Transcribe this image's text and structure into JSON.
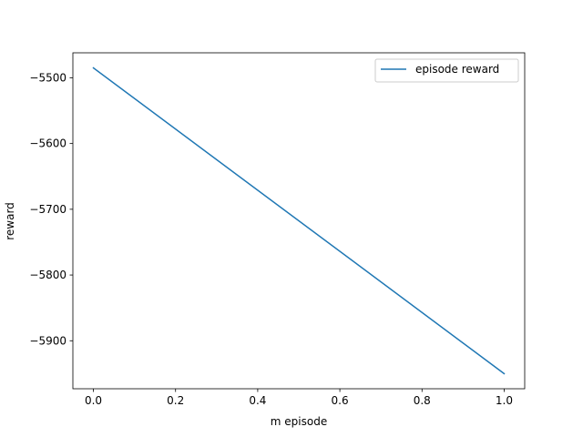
{
  "chart_data": {
    "type": "line",
    "title": "",
    "xlabel": "m episode",
    "ylabel": "reward",
    "xlim": [
      -0.05,
      1.05
    ],
    "ylim": [
      -5973,
      -5462
    ],
    "x_ticks": [
      0.0,
      0.2,
      0.4,
      0.6,
      0.8,
      1.0
    ],
    "x_tick_labels": [
      "0.0",
      "0.2",
      "0.4",
      "0.6",
      "0.8",
      "1.0"
    ],
    "y_ticks": [
      -5900,
      -5800,
      -5700,
      -5600,
      -5500
    ],
    "y_tick_labels": [
      "−5900",
      "−5800",
      "−5700",
      "−5600",
      "−5500"
    ],
    "grid": false,
    "legend_position": "top-right",
    "series": [
      {
        "name": "episode reward",
        "color": "#1f77b4",
        "x": [
          0.0,
          1.0
        ],
        "y": [
          -5485,
          -5950
        ]
      }
    ]
  }
}
